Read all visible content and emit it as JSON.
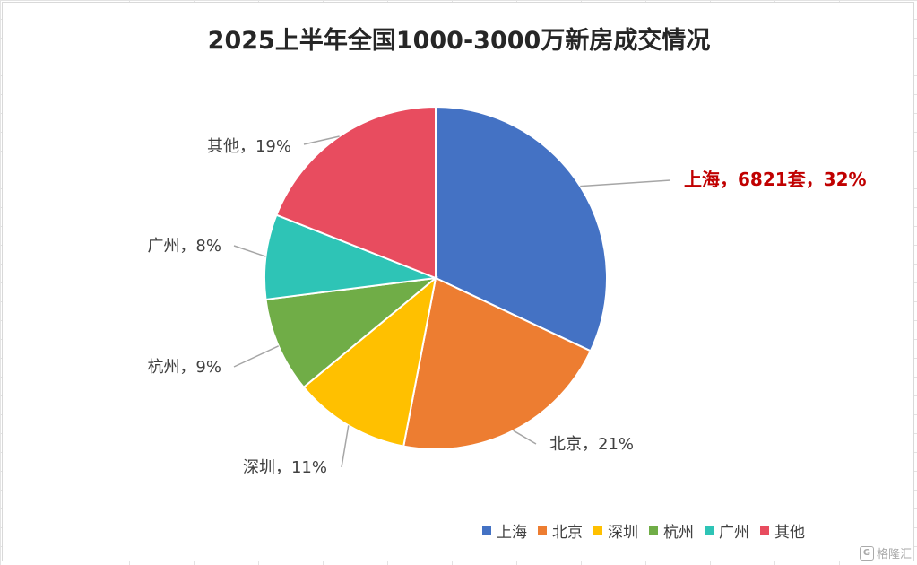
{
  "chart_data": {
    "type": "pie",
    "title": "2025上半年全国1000-3000万新房成交情况",
    "slices": [
      {
        "name": "上海",
        "value": 32,
        "color": "#4472C4",
        "label": "上海，6821套，32%",
        "highlight": true
      },
      {
        "name": "北京",
        "value": 21,
        "color": "#ED7D31",
        "label": "北京，21%"
      },
      {
        "name": "深圳",
        "value": 11,
        "color": "#FFC000",
        "label": "深圳，11%"
      },
      {
        "name": "杭州",
        "value": 9,
        "color": "#70AD47",
        "label": "杭州，9%"
      },
      {
        "name": "广州",
        "value": 8,
        "color": "#2EC4B6",
        "label": "广州，8%"
      },
      {
        "name": "其他",
        "value": 19,
        "color": "#E84C5F",
        "label": "其他，19%"
      }
    ],
    "legend_position": "bottom-right",
    "highlight_color": "#C00000"
  },
  "watermark": {
    "logo": "G",
    "text": "格隆汇"
  }
}
